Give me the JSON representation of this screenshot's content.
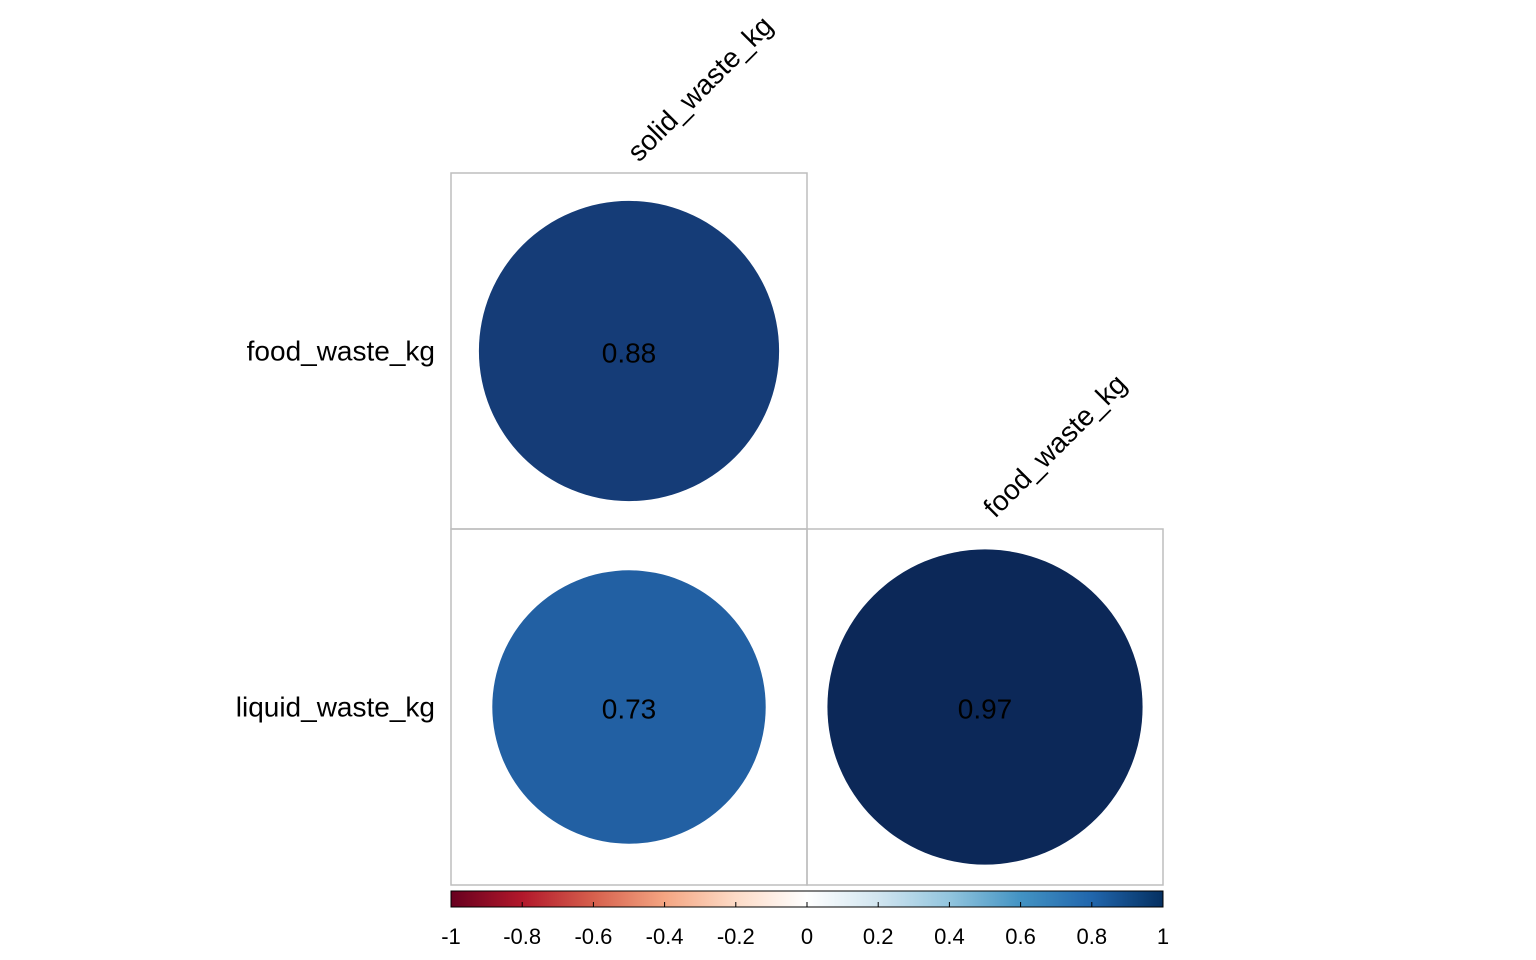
{
  "chart_data": {
    "type": "heatmap",
    "subtype": "correlation-circle-lower",
    "row_labels": [
      "food_waste_kg",
      "liquid_waste_kg"
    ],
    "col_labels": [
      "solid_waste_kg",
      "food_waste_kg"
    ],
    "cells": [
      {
        "row": 0,
        "col": 0,
        "value": 0.88,
        "label": "0.88",
        "color": "#153C77"
      },
      {
        "row": 1,
        "col": 0,
        "value": 0.73,
        "label": "0.73",
        "color": "#2260A3"
      },
      {
        "row": 1,
        "col": 1,
        "value": 0.97,
        "label": "0.97",
        "color": "#0C2858"
      }
    ],
    "colorbar": {
      "range": [
        -1,
        1
      ],
      "ticks": [
        -1,
        -0.8,
        -0.6,
        -0.4,
        -0.2,
        0,
        0.2,
        0.4,
        0.6,
        0.8,
        1
      ],
      "tick_labels": [
        "-1",
        "-0.8",
        "-0.6",
        "-0.4",
        "-0.2",
        "0",
        "0.2",
        "0.4",
        "0.6",
        "0.8",
        "1"
      ],
      "colors": [
        "#67001F",
        "#B2182B",
        "#D6604D",
        "#F4A582",
        "#FDDBC7",
        "#FFFFFF",
        "#D1E5F0",
        "#92C5DE",
        "#4393C3",
        "#2166AC",
        "#053061"
      ],
      "orientation": "horizontal"
    },
    "grid": true,
    "title": "",
    "xlabel": "",
    "ylabel": ""
  }
}
